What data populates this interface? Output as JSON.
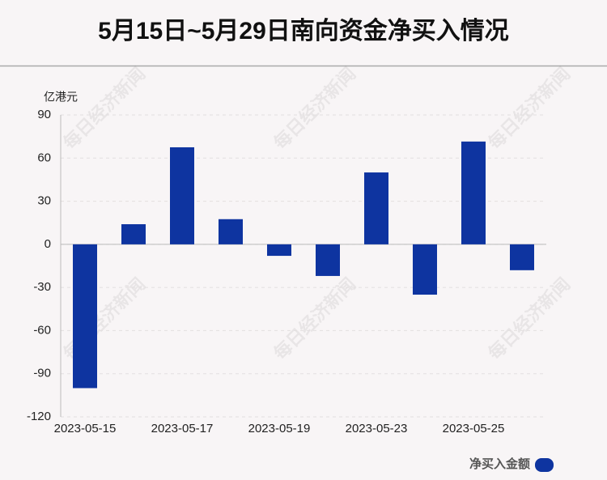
{
  "chart_data": {
    "type": "bar",
    "title": "5月15日~5月29日南向资金净买入情况",
    "y_unit": "亿港元",
    "watermark": "每日经济新闻",
    "categories": [
      "2023-05-15",
      null,
      "2023-05-17",
      null,
      "2023-05-19",
      null,
      "2023-05-23",
      null,
      "2023-05-25",
      null
    ],
    "series": [
      {
        "name": "净买入金额",
        "color": "#0e34a0",
        "values": [
          -100,
          14,
          67.5,
          17.5,
          -8,
          -22,
          50,
          -35,
          71.5,
          -18
        ]
      }
    ],
    "ylim": [
      -120,
      90
    ],
    "yticks": [
      -120,
      -90,
      -60,
      -30,
      0,
      30,
      60,
      90
    ],
    "grid": true,
    "legend": "bottom-right"
  }
}
